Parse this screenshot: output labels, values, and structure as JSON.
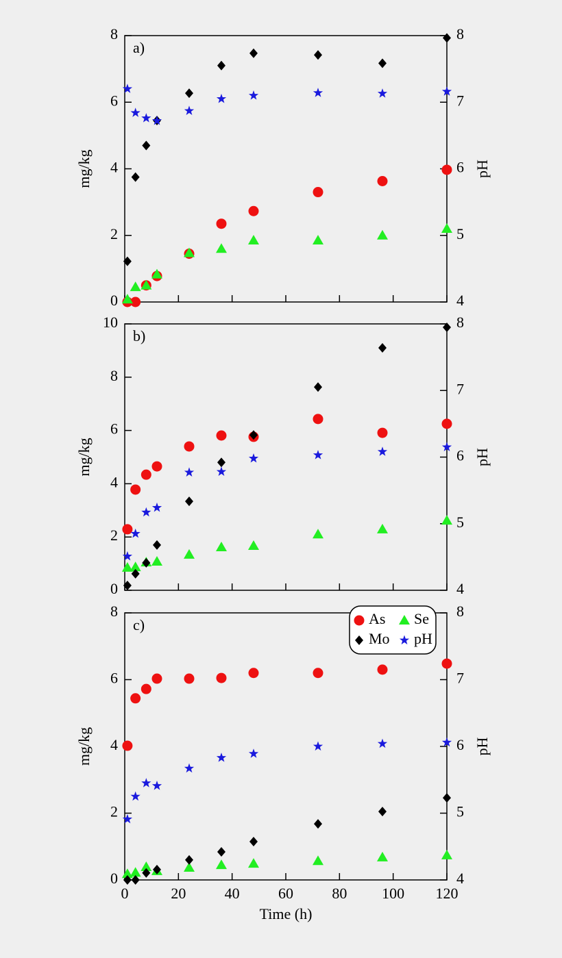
{
  "chart_data": [
    {
      "type": "scatter",
      "panel_label": "a)",
      "ylabel": "mg/kg",
      "y2label": "pH",
      "x": [
        1,
        4,
        8,
        12,
        24,
        36,
        48,
        72,
        96,
        120
      ],
      "xlim": [
        0,
        120
      ],
      "xticks": [
        0,
        20,
        40,
        60,
        80,
        100,
        120
      ],
      "ylim": [
        0,
        8
      ],
      "yticks": [
        0,
        2,
        4,
        6,
        8
      ],
      "y2lim": [
        4,
        8
      ],
      "y2ticks": [
        4,
        5,
        6,
        7,
        8
      ],
      "series": [
        {
          "name": "As",
          "marker": "circle",
          "color": "#ee1111",
          "values": [
            0,
            0,
            0.5,
            0.78,
            1.45,
            2.35,
            2.73,
            3.3,
            3.63,
            3.97
          ]
        },
        {
          "name": "Se",
          "marker": "triangle",
          "color": "#22ee22",
          "values": [
            0.08,
            0.45,
            0.5,
            0.83,
            1.47,
            1.6,
            1.85,
            1.85,
            2.0,
            2.2
          ]
        },
        {
          "name": "Mo",
          "marker": "diamond",
          "color": "#000000",
          "values": [
            1.22,
            3.75,
            4.7,
            5.45,
            6.27,
            7.1,
            7.47,
            7.42,
            7.17,
            7.93
          ]
        },
        {
          "name": "pH",
          "marker": "star",
          "color": "#1a1add",
          "axis": "y2",
          "values": [
            7.2,
            6.84,
            6.76,
            6.72,
            6.87,
            7.05,
            7.1,
            7.14,
            7.13,
            7.16
          ]
        }
      ]
    },
    {
      "type": "scatter",
      "panel_label": "b)",
      "ylabel": "mg/kg",
      "y2label": "pH",
      "x": [
        1,
        4,
        8,
        12,
        24,
        36,
        48,
        72,
        96,
        120
      ],
      "xlim": [
        0,
        120
      ],
      "xticks": [
        0,
        20,
        40,
        60,
        80,
        100,
        120
      ],
      "ylim": [
        0,
        10
      ],
      "yticks": [
        0,
        2,
        4,
        6,
        8,
        10
      ],
      "y2lim": [
        4,
        8
      ],
      "y2ticks": [
        4,
        5,
        6,
        7,
        8
      ],
      "series": [
        {
          "name": "As",
          "marker": "circle",
          "color": "#ee1111",
          "values": [
            2.29,
            3.78,
            4.34,
            4.65,
            5.4,
            5.81,
            5.76,
            6.43,
            5.91,
            6.25
          ]
        },
        {
          "name": "Se",
          "marker": "triangle",
          "color": "#22ee22",
          "values": [
            0.85,
            0.87,
            1.05,
            1.08,
            1.34,
            1.62,
            1.67,
            2.1,
            2.29,
            2.62
          ]
        },
        {
          "name": "Mo",
          "marker": "diamond",
          "color": "#000000",
          "values": [
            0.18,
            0.62,
            1.03,
            1.7,
            3.34,
            4.8,
            5.83,
            7.63,
            9.1,
            9.87
          ]
        },
        {
          "name": "pH",
          "marker": "star",
          "color": "#1a1add",
          "axis": "y2",
          "values": [
            4.51,
            4.85,
            5.17,
            5.24,
            5.77,
            5.78,
            5.98,
            6.03,
            6.08,
            6.15
          ]
        }
      ]
    },
    {
      "type": "scatter",
      "panel_label": "c)",
      "ylabel": "mg/kg",
      "y2label": "pH",
      "xlabel": "Time (h)",
      "x": [
        1,
        4,
        8,
        12,
        24,
        36,
        48,
        72,
        96,
        120
      ],
      "xlim": [
        0,
        120
      ],
      "xticks": [
        0,
        20,
        40,
        60,
        80,
        100,
        120
      ],
      "ylim": [
        0,
        8
      ],
      "yticks": [
        0,
        2,
        4,
        6,
        8
      ],
      "y2lim": [
        4,
        8
      ],
      "y2ticks": [
        4,
        5,
        6,
        7,
        8
      ],
      "legend": "upper right",
      "series": [
        {
          "name": "As",
          "marker": "circle",
          "color": "#ee1111",
          "values": [
            4.02,
            5.44,
            5.72,
            6.03,
            6.03,
            6.05,
            6.2,
            6.2,
            6.3,
            6.48
          ]
        },
        {
          "name": "Se",
          "marker": "triangle",
          "color": "#22ee22",
          "values": [
            0.18,
            0.22,
            0.39,
            0.27,
            0.37,
            0.45,
            0.49,
            0.57,
            0.68,
            0.74
          ]
        },
        {
          "name": "Mo",
          "marker": "diamond",
          "color": "#000000",
          "values": [
            0,
            0,
            0.21,
            0.31,
            0.6,
            0.84,
            1.15,
            1.68,
            2.05,
            2.46
          ]
        },
        {
          "name": "pH",
          "marker": "star",
          "color": "#1a1add",
          "axis": "y2",
          "values": [
            4.91,
            5.25,
            5.45,
            5.41,
            5.67,
            5.83,
            5.89,
            6.0,
            6.04,
            6.06
          ]
        }
      ]
    }
  ]
}
